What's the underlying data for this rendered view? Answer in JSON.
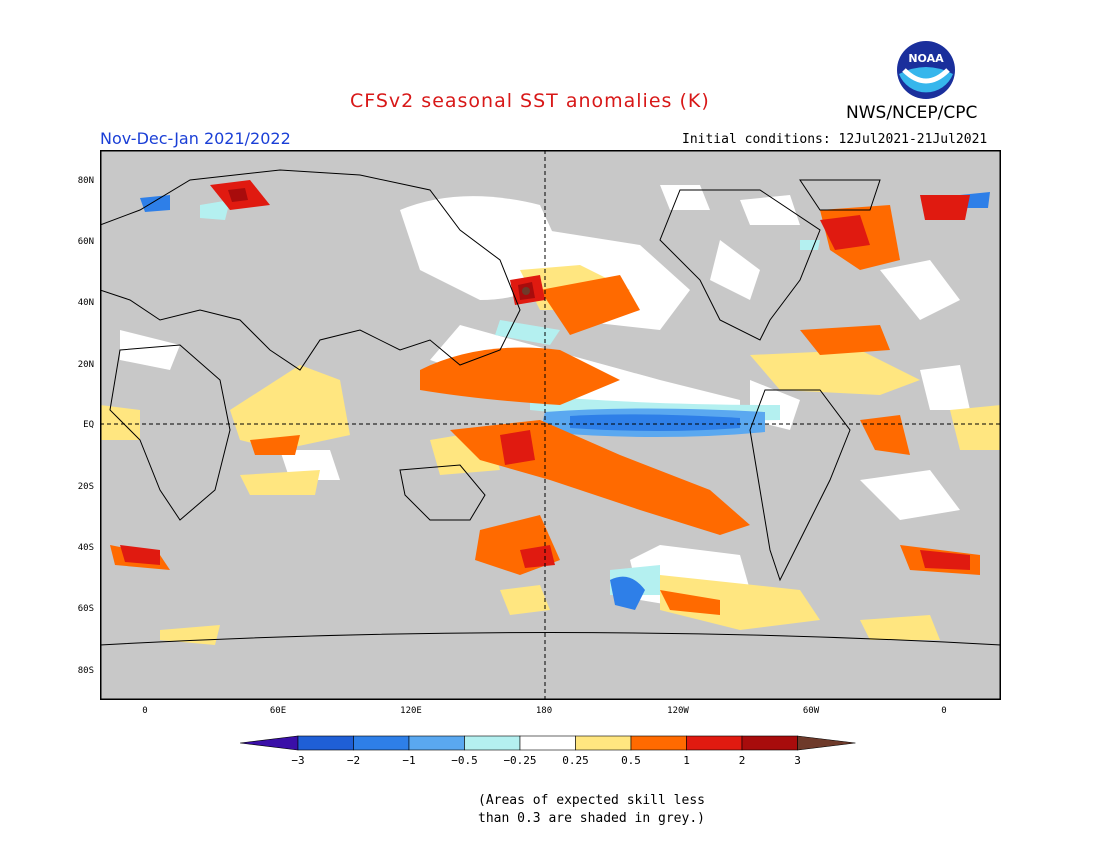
{
  "header": {
    "title": "CFSv2 seasonal SST anomalies (K)",
    "agency": "NWS/NCEP/CPC",
    "logo_text": "NOAA",
    "season": "Nov-Dec-Jan 2021/2022",
    "initial_conditions": "Initial conditions: 12Jul2021-21Jul2021"
  },
  "map": {
    "lat_labels": [
      "80N",
      "60N",
      "40N",
      "20N",
      "EQ",
      "20S",
      "40S",
      "60S",
      "80S"
    ],
    "lon_labels": [
      "0",
      "60E",
      "120E",
      "180",
      "120W",
      "60W",
      "0"
    ],
    "land_color": "#c8c8c8",
    "ocean_base_color": "#ffffff"
  },
  "colorbar": {
    "colors": [
      "#3a0fa8",
      "#1f5fd6",
      "#2e7fe8",
      "#5aa8f0",
      "#b4f0f0",
      "#ffffff",
      "#ffe680",
      "#ff6a00",
      "#e01a10",
      "#a80c0c",
      "#6e3a2a"
    ],
    "labels": [
      "−3",
      "−2",
      "−1",
      "−0.5",
      "−0.25",
      "0.25",
      "0.5",
      "1",
      "2",
      "3"
    ]
  },
  "note": {
    "line1": "(Areas of expected skill less",
    "line2": "than 0.3 are shaded in grey.)"
  }
}
